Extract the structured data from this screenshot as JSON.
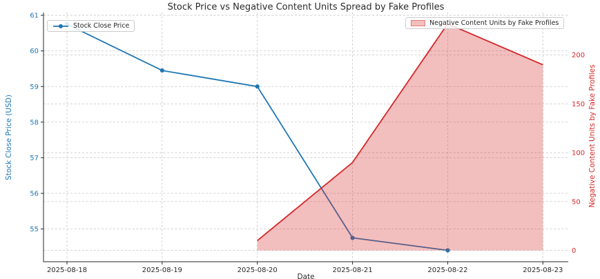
{
  "chart_data": {
    "type": "line",
    "title": "Stock Price vs Negative Content Units Spread by Fake Profiles",
    "xlabel": "Date",
    "categories": [
      "2025-08-18",
      "2025-08-19",
      "2025-08-20",
      "2025-08-21",
      "2025-08-22",
      "2025-08-23"
    ],
    "series": [
      {
        "name": "Stock Close Price",
        "type": "line",
        "axis": "left",
        "color": "#1f77b4",
        "marker": "circle",
        "x_indices": [
          0,
          1,
          2,
          3,
          4
        ],
        "values": [
          60.75,
          59.45,
          59.0,
          54.75,
          54.4
        ]
      },
      {
        "name": "Negative Content Units by Fake Profiles",
        "type": "area",
        "axis": "right",
        "color": "#d62728",
        "fill_opacity": 0.3,
        "baseline": 0,
        "x_indices": [
          2,
          3,
          4,
          5
        ],
        "values": [
          10,
          90,
          232,
          190
        ]
      }
    ],
    "axes": {
      "left": {
        "label": "Stock Close Price (USD)",
        "color": "#1f77b4",
        "ticks": [
          55,
          56,
          57,
          58,
          59,
          60,
          61
        ],
        "ylim": [
          54.08,
          61.08
        ]
      },
      "right": {
        "label": "Negative Content Units by Fake Profiles",
        "color": "#d62728",
        "ticks": [
          0,
          50,
          100,
          150,
          200
        ],
        "ylim": [
          -11.6,
          243.6
        ]
      }
    },
    "grid": {
      "show": true,
      "style": "dashed",
      "color": "#cccccc"
    },
    "legend": [
      {
        "label": "Stock Close Price",
        "position": "upper-left"
      },
      {
        "label": "Negative Content Units by Fake Profiles",
        "position": "upper-right"
      }
    ],
    "spine_color": "#262626",
    "x_tick_label_color": "#262626",
    "background": "#ffffff"
  }
}
